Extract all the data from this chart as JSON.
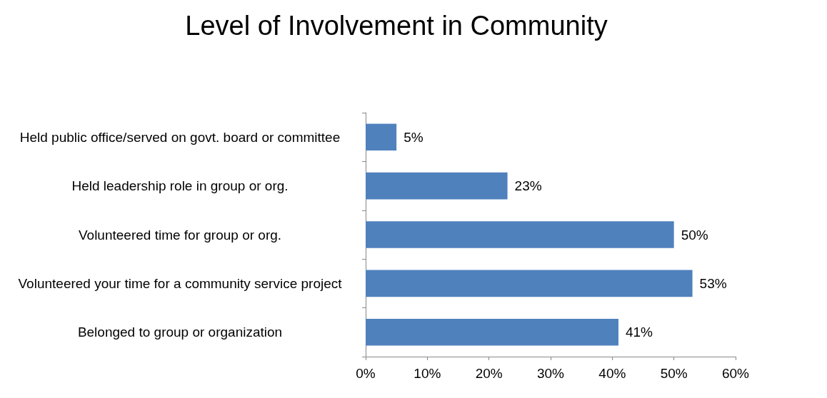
{
  "chart_data": {
    "type": "bar",
    "orientation": "horizontal",
    "title": "Level of Involvement in Community",
    "categories": [
      "Held public office/served on govt. board or committee",
      "Held leadership role in group or org.",
      "Volunteered time for group or org.",
      "Volunteered your time for a community service project",
      "Belonged to group or organization"
    ],
    "values": [
      5,
      23,
      50,
      53,
      41
    ],
    "value_labels": [
      "5%",
      "23%",
      "50%",
      "53%",
      "41%"
    ],
    "color": "#4f81bd",
    "xlim": [
      0,
      60
    ],
    "xticks": [
      {
        "value": 0,
        "label": "0%"
      },
      {
        "value": 10,
        "label": "10%"
      },
      {
        "value": 20,
        "label": "20%"
      },
      {
        "value": 30,
        "label": "30%"
      },
      {
        "value": 40,
        "label": "40%"
      },
      {
        "value": 50,
        "label": "50%"
      },
      {
        "value": 60,
        "label": "60%"
      }
    ]
  }
}
